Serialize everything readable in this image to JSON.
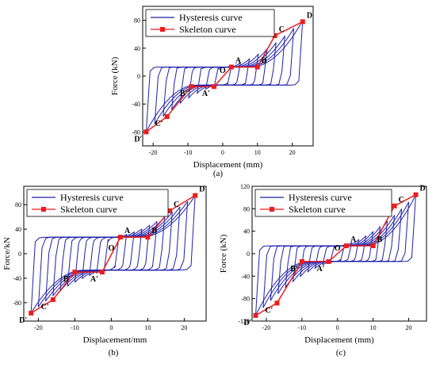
{
  "chart_data": [
    {
      "type": "line",
      "caption": "(a)",
      "xlabel": "Displacement (mm)",
      "ylabel": "Force (kN)",
      "xlim": [
        -23,
        26
      ],
      "ylim": [
        -100,
        100
      ],
      "xticks": [
        -20,
        -10,
        0,
        10,
        20
      ],
      "yticks": [
        -80,
        -40,
        0,
        40,
        80
      ],
      "legend_position": "top-left",
      "series": [
        {
          "name": "Hysteresis curve",
          "color": "#1f1fa8"
        },
        {
          "name": "Skeleton curve",
          "color": "#ee1c1c"
        }
      ],
      "hysteresis": {
        "xmin": -22,
        "xmax": 23,
        "fmax": 80,
        "fmin": -80,
        "plateau": 13,
        "n_loops": 9
      },
      "skeleton": {
        "x": [
          -22,
          -16,
          -9,
          -2.5,
          2.5,
          10,
          15,
          23
        ],
        "y": [
          -80,
          -58,
          -15,
          -15,
          13,
          13,
          58,
          78
        ]
      },
      "point_labels": [
        {
          "text": "D′",
          "x": -22,
          "y": -80
        },
        {
          "text": "C′",
          "x": -16,
          "y": -58
        },
        {
          "text": "B′",
          "x": -9,
          "y": -15
        },
        {
          "text": "A′",
          "x": -2.5,
          "y": -15
        },
        {
          "text": "O",
          "x": 0,
          "y": 0
        },
        {
          "text": "A",
          "x": 2.5,
          "y": 13
        },
        {
          "text": "B",
          "x": 10,
          "y": 13
        },
        {
          "text": "C",
          "x": 15,
          "y": 58
        },
        {
          "text": "D",
          "x": 23,
          "y": 78
        }
      ]
    },
    {
      "type": "line",
      "caption": "(b)",
      "xlabel": "Displacement/mm",
      "ylabel": "Force/kN",
      "xlim": [
        -24,
        26
      ],
      "ylim": [
        -110,
        110
      ],
      "xticks": [
        -20,
        -10,
        0,
        10,
        20
      ],
      "yticks": [
        -80,
        -40,
        0,
        40,
        80
      ],
      "legend_position": "top-left",
      "series": [
        {
          "name": "Hysteresis curve",
          "color": "#1f1fa8"
        },
        {
          "name": "Skeleton curve",
          "color": "#ee1c1c"
        }
      ],
      "hysteresis": {
        "xmin": -22,
        "xmax": 23,
        "fmax": 95,
        "fmin": -97,
        "plateau": 27,
        "n_loops": 11
      },
      "skeleton": {
        "x": [
          -22,
          -16,
          -10,
          -2.5,
          2.5,
          10,
          16,
          23
        ],
        "y": [
          -97,
          -75,
          -30,
          -30,
          27,
          27,
          70,
          95
        ]
      },
      "point_labels": [
        {
          "text": "D′",
          "x": -22,
          "y": -97
        },
        {
          "text": "C′",
          "x": -16,
          "y": -75
        },
        {
          "text": "B′",
          "x": -10,
          "y": -30
        },
        {
          "text": "A′",
          "x": -2.5,
          "y": -30
        },
        {
          "text": "O",
          "x": 0,
          "y": 0
        },
        {
          "text": "A",
          "x": 2.5,
          "y": 27
        },
        {
          "text": "B",
          "x": 10,
          "y": 27
        },
        {
          "text": "C",
          "x": 16,
          "y": 70
        },
        {
          "text": "D",
          "x": 23,
          "y": 95
        }
      ]
    },
    {
      "type": "line",
      "caption": "(c)",
      "xlabel": "Displacement (mm)",
      "ylabel": "Force (kN)",
      "xlim": [
        -24,
        25
      ],
      "ylim": [
        -120,
        120
      ],
      "xticks": [
        -20,
        -10,
        0,
        10,
        20
      ],
      "yticks": [
        -120,
        -80,
        -40,
        0,
        40,
        80,
        120
      ],
      "legend_position": "top-left",
      "series": [
        {
          "name": "Hysteresis curve",
          "color": "#1f1fa8"
        },
        {
          "name": "Skeleton curve",
          "color": "#ee1c1c"
        }
      ],
      "hysteresis": {
        "xmin": -23,
        "xmax": 22,
        "fmax": 105,
        "fmin": -110,
        "plateau": 14,
        "n_loops": 11
      },
      "skeleton": {
        "x": [
          -23,
          -17,
          -10,
          -2.5,
          2.5,
          10,
          16,
          22
        ],
        "y": [
          -110,
          -88,
          -14,
          -14,
          14,
          14,
          85,
          105
        ]
      },
      "point_labels": [
        {
          "text": "D′",
          "x": -23,
          "y": -110
        },
        {
          "text": "C′",
          "x": -17,
          "y": -88
        },
        {
          "text": "B′",
          "x": -10,
          "y": -14
        },
        {
          "text": "A′",
          "x": -2.5,
          "y": -14
        },
        {
          "text": "O",
          "x": 0,
          "y": 0
        },
        {
          "text": "A",
          "x": 2.5,
          "y": 14
        },
        {
          "text": "B",
          "x": 10,
          "y": 14
        },
        {
          "text": "C",
          "x": 16,
          "y": 85
        },
        {
          "text": "D",
          "x": 22,
          "y": 105
        }
      ]
    }
  ]
}
